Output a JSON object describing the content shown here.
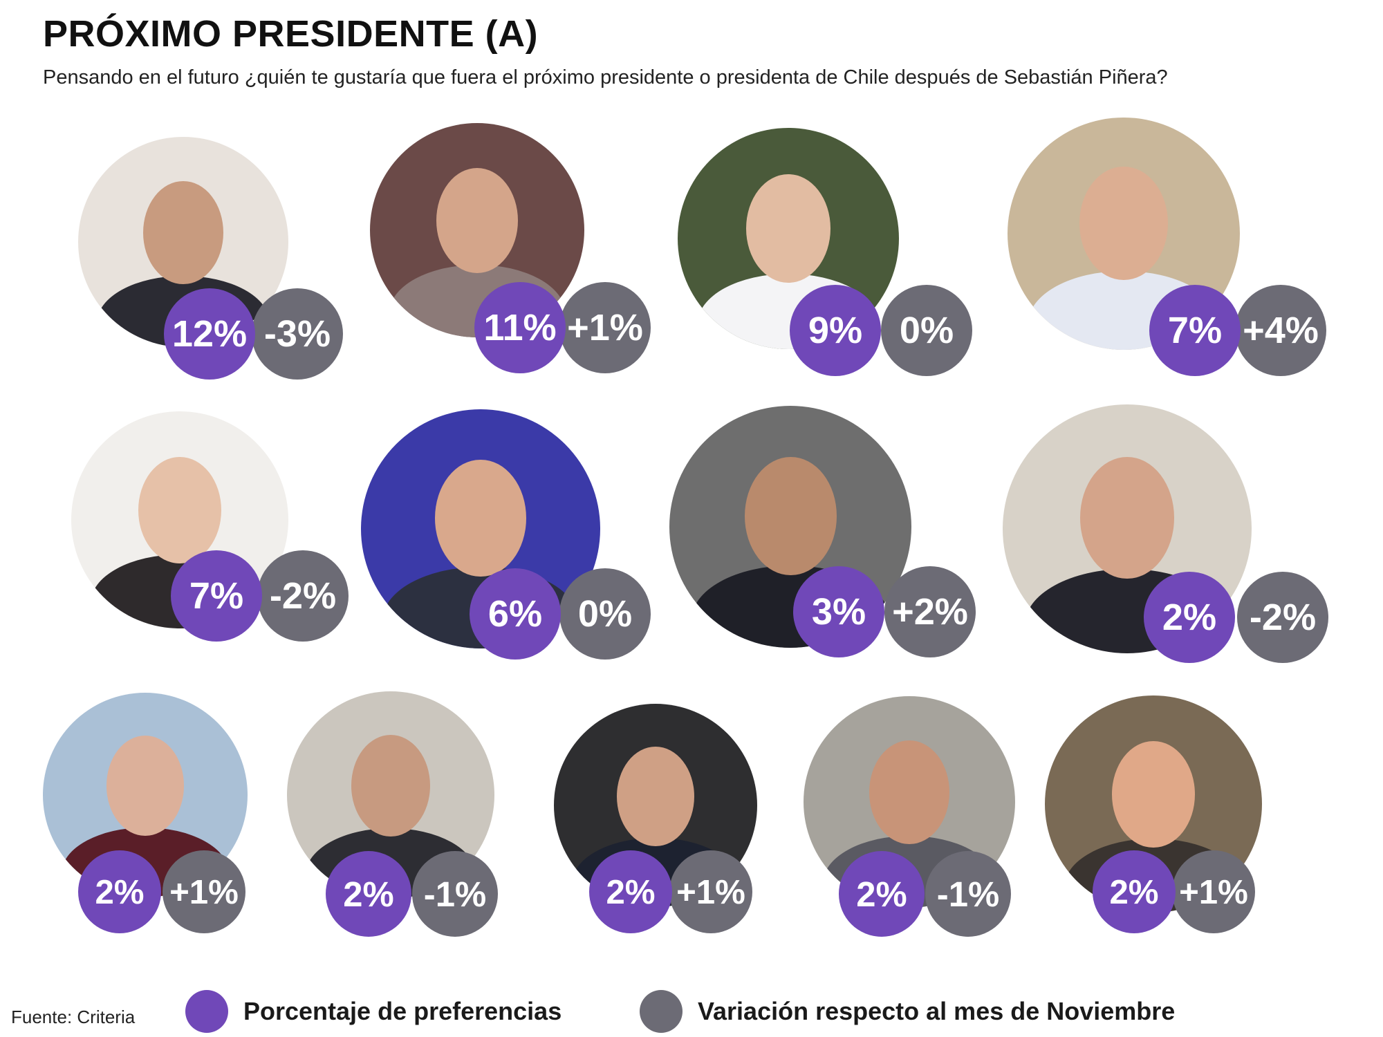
{
  "title": "PRÓXIMO PRESIDENTE (A)",
  "subtitle": "Pensando en el futuro ¿quién te gustaría  que fuera el próximo presidente o presidenta de Chile después de Sebastián Piñera?",
  "colors": {
    "preference": "#7048b8",
    "variation": "#6c6b75"
  },
  "chart_data": {
    "type": "table",
    "columns": [
      "Porcentaje de preferencias",
      "Variación respecto al mes de Noviembre"
    ],
    "rows": [
      {
        "pct": "12%",
        "var": "-3%"
      },
      {
        "pct": "11%",
        "var": "+1%"
      },
      {
        "pct": "9%",
        "var": "0%"
      },
      {
        "pct": "7%",
        "var": "+4%"
      },
      {
        "pct": "7%",
        "var": "-2%"
      },
      {
        "pct": "6%",
        "var": "0%"
      },
      {
        "pct": "3%",
        "var": "+2%"
      },
      {
        "pct": "2%",
        "var": "-2%"
      },
      {
        "pct": "2%",
        "var": "+1%"
      },
      {
        "pct": "2%",
        "var": "-1%"
      },
      {
        "pct": "2%",
        "var": "+1%"
      },
      {
        "pct": "2%",
        "var": "-1%"
      },
      {
        "pct": "2%",
        "var": "+1%"
      }
    ]
  },
  "legend": {
    "preference_label": "Porcentaje de preferencias",
    "variation_label": "Variación respecto al mes de Noviembre"
  },
  "source": "Fuente: Criteria"
}
